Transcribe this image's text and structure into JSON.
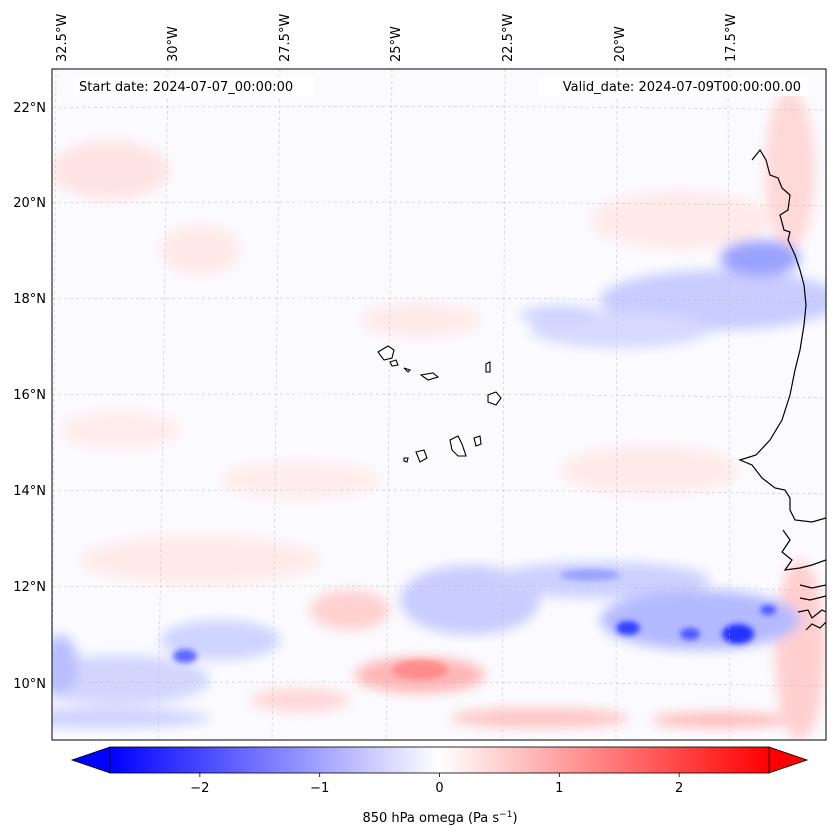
{
  "map": {
    "projection_hint": "lambert-conformal",
    "lon_ticks": [
      "32.5°W",
      "30°W",
      "27.5°W",
      "25°W",
      "22.5°W",
      "20°W",
      "17.5°W"
    ],
    "lat_ticks": [
      "22°N",
      "20°N",
      "18°N",
      "16°N",
      "14°N",
      "12°N",
      "10°N"
    ],
    "start_label": "Start date: 2024-07-07_00:00:00",
    "valid_label": "Valid_date: 2024-07-09T00:00:00.00",
    "features": [
      "west-africa-coastline",
      "cape-verde-islands"
    ]
  },
  "colorbar": {
    "label_prefix": "850 hPa omega (Pa s",
    "label_exp": "−1",
    "label_suffix": ")",
    "ticks": [
      "−2",
      "−1",
      "0",
      "1",
      "2"
    ],
    "tick_values": [
      -2,
      -1,
      0,
      1,
      2
    ],
    "vmin": -2.75,
    "vmax": 2.75,
    "cmap": "bwr",
    "colors": {
      "neg": "#0000ff",
      "mid": "#ffffff",
      "pos": "#ff0000"
    }
  },
  "field_features": [
    {
      "kind": "descent-band",
      "sign": "positive",
      "region": "south-central near 10°N 25°W–22°W",
      "peak": 1.5
    },
    {
      "kind": "ascent-cores",
      "sign": "negative",
      "region": "south-east 10.5°N–11.5°N 20°W–17°W",
      "peak": -2.3
    },
    {
      "kind": "ascent-band",
      "sign": "negative",
      "region": "18°N–19°N 23°W–17°W",
      "peak": -0.8
    },
    {
      "kind": "ascent-core",
      "sign": "negative",
      "region": "10.5°N 30°W",
      "peak": -1.5
    }
  ]
}
